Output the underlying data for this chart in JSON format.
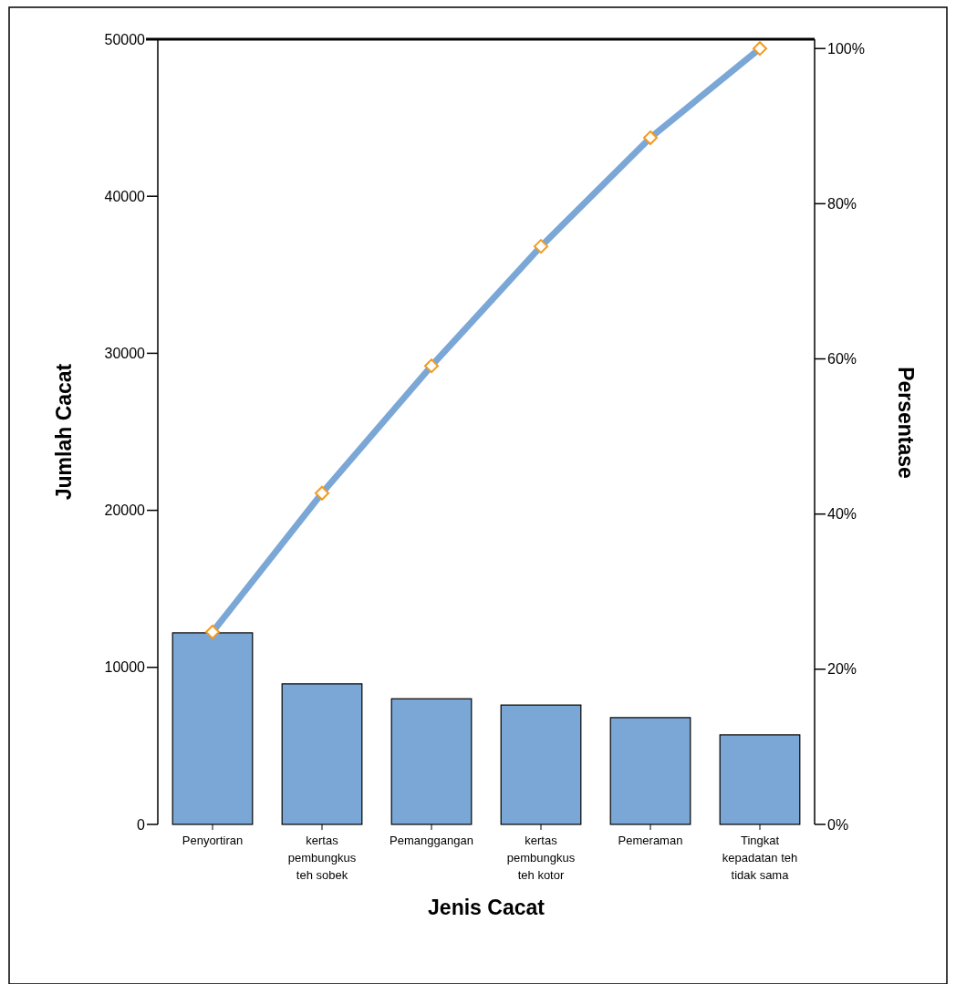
{
  "chart_data": {
    "type": "bar",
    "xlabel": "Jenis Cacat",
    "ylabel": "Jumlah Cacat",
    "y2label": "Persentase",
    "categories": [
      "Penyortiran",
      "kertas pembungkus teh sobek",
      "Pemanggangan",
      "kertas pembungkus teh kotor",
      "Pemeraman",
      "Tingkat kepadatan teh tidak sama"
    ],
    "series": [
      {
        "color": "#7ba7d7",
        "values": [
          12200,
          8950,
          8000,
          7600,
          6800,
          5700
        ]
      },
      {
        "type": "line",
        "axis": "y2",
        "color": "#7ba7d7",
        "marker": "diamond",
        "values": [
          24.8,
          42.7,
          59.1,
          74.5,
          88.5,
          100
        ]
      }
    ],
    "ylim": [
      0,
      50000
    ],
    "yticks": [
      0,
      10000,
      20000,
      30000,
      40000,
      50000
    ],
    "y2lim": [
      0,
      101.2
    ],
    "y2ticks": [
      {
        "value": 0,
        "label": "0%"
      },
      {
        "value": 20,
        "label": "20%"
      },
      {
        "value": 40,
        "label": "40%"
      },
      {
        "value": 60,
        "label": "60%"
      },
      {
        "value": 80,
        "label": "80%"
      },
      {
        "value": 100,
        "label": "100%"
      }
    ],
    "grid": false
  }
}
